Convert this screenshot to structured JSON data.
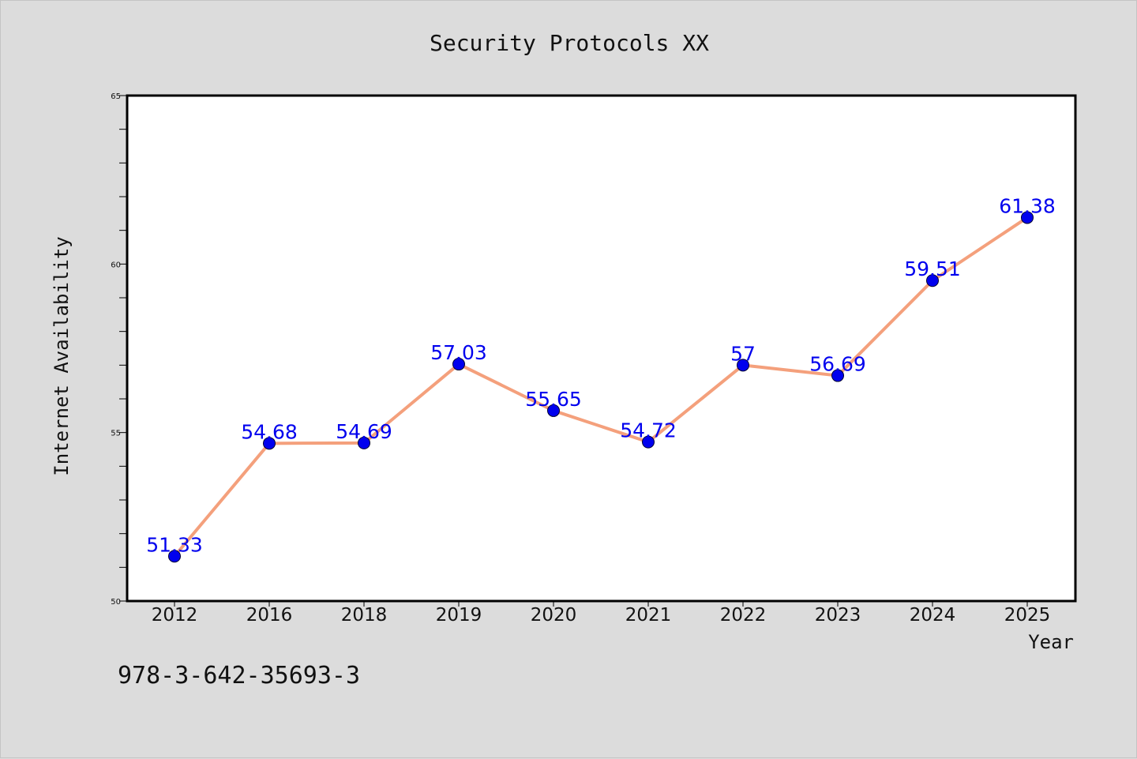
{
  "chart_data": {
    "type": "line",
    "title": "Security Protocols XX",
    "xlabel": "Year",
    "ylabel": "Internet Availability",
    "categories": [
      "2012",
      "2016",
      "2018",
      "2019",
      "2020",
      "2021",
      "2022",
      "2023",
      "2024",
      "2025"
    ],
    "series": [
      {
        "values": [
          51.33,
          54.68,
          54.69,
          57.03,
          55.65,
          54.72,
          57,
          56.69,
          59.51,
          61.38
        ],
        "labels": [
          "51.33",
          "54.68",
          "54.69",
          "57.03",
          "55.65",
          "54.72",
          "57",
          "56.69",
          "59.51",
          "61.38"
        ],
        "line_color": "#f4a07c",
        "marker_color": "#0000ee",
        "label_color": "#0000ee"
      }
    ],
    "ylim": [
      50,
      65
    ],
    "yticks": [
      "50",
      "55",
      "60",
      "65"
    ],
    "grid": false,
    "legend": "none"
  },
  "footnote": "978-3-642-35693-3",
  "colors": {
    "background": "#dcdcdc",
    "plot_background": "#ffffff",
    "axis": "#000000"
  }
}
